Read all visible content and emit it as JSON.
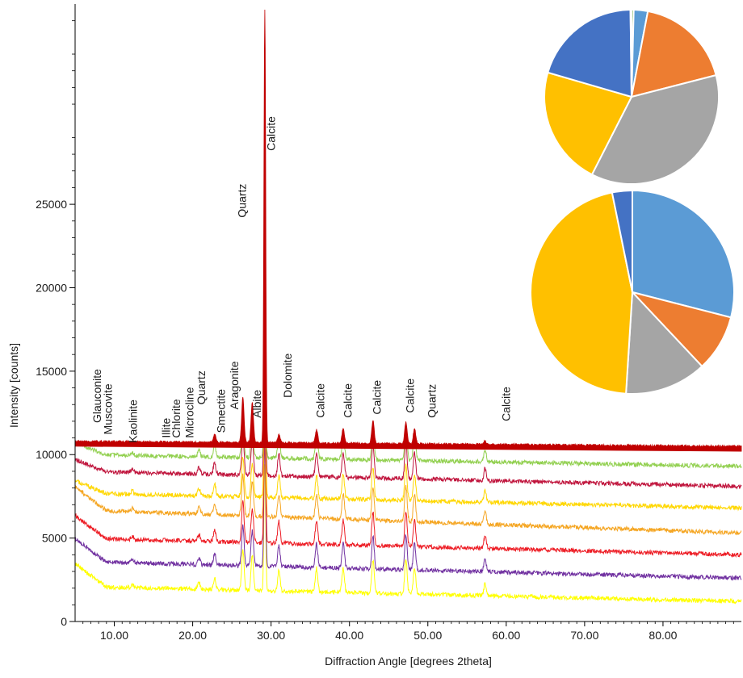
{
  "chart_data": [
    {
      "type": "line",
      "xlabel": "Diffraction Angle [degrees 2theta]",
      "ylabel": "Intensity [counts]",
      "xlim": [
        5,
        90
      ],
      "ylim": [
        0,
        37000
      ],
      "x_ticks": [
        "10.00",
        "20.00",
        "30.00",
        "40.00",
        "50.00",
        "60.00",
        "70.00",
        "80.00"
      ],
      "x_tick_values": [
        10,
        20,
        30,
        40,
        50,
        60,
        70,
        80
      ],
      "y_ticks": [
        "0",
        "5000",
        "10000",
        "15000",
        "20000",
        "25000"
      ],
      "y_tick_values": [
        0,
        5000,
        10000,
        15000,
        20000,
        25000
      ],
      "grid": false,
      "series": [
        {
          "color": "#c00000",
          "baseline": 10800,
          "end": 10500,
          "style": "filled",
          "peaks": [
            [
              22.8,
              500
            ],
            [
              26.4,
              2700
            ],
            [
              27.6,
              2400
            ],
            [
              29.2,
              26000
            ],
            [
              31.0,
              500
            ],
            [
              35.8,
              800
            ],
            [
              39.2,
              900
            ],
            [
              43.0,
              1400
            ],
            [
              47.2,
              1300
            ],
            [
              48.3,
              900
            ],
            [
              57.3,
              200
            ]
          ]
        },
        {
          "color": "#92d050",
          "baseline": 10000,
          "end": 9300,
          "peaks": [
            [
              12.3,
              200
            ],
            [
              20.8,
              400
            ],
            [
              22.8,
              700
            ],
            [
              26.4,
              2400
            ],
            [
              27.6,
              2100
            ],
            [
              29.2,
              7500
            ],
            [
              31.0,
              1300
            ],
            [
              35.8,
              1400
            ],
            [
              39.2,
              1500
            ],
            [
              43.0,
              2000
            ],
            [
              47.2,
              2100
            ],
            [
              48.3,
              1600
            ],
            [
              57.3,
              700
            ]
          ]
        },
        {
          "color": "#c0143c",
          "baseline": 9000,
          "end": 8100,
          "peaks": [
            [
              12.3,
              200
            ],
            [
              20.8,
              400
            ],
            [
              22.8,
              700
            ],
            [
              26.4,
              2400
            ],
            [
              27.6,
              2100
            ],
            [
              29.2,
              7500
            ],
            [
              31.0,
              1300
            ],
            [
              35.8,
              1400
            ],
            [
              39.2,
              1500
            ],
            [
              43.0,
              2000
            ],
            [
              47.2,
              2100
            ],
            [
              48.3,
              1600
            ],
            [
              57.3,
              700
            ]
          ]
        },
        {
          "color": "#ffd700",
          "baseline": 7700,
          "end": 6800,
          "peaks": [
            [
              12.3,
              200
            ],
            [
              20.8,
              400
            ],
            [
              22.8,
              700
            ],
            [
              26.4,
              2400
            ],
            [
              27.6,
              2100
            ],
            [
              29.2,
              7500
            ],
            [
              31.0,
              1300
            ],
            [
              35.8,
              1400
            ],
            [
              39.2,
              1500
            ],
            [
              43.0,
              2000
            ],
            [
              47.2,
              2100
            ],
            [
              48.3,
              1600
            ],
            [
              57.3,
              700
            ]
          ]
        },
        {
          "color": "#f5a623",
          "baseline": 6700,
          "end": 5300,
          "peaks": [
            [
              12.3,
              200
            ],
            [
              20.8,
              400
            ],
            [
              22.8,
              700
            ],
            [
              26.4,
              2400
            ],
            [
              27.6,
              2100
            ],
            [
              29.2,
              7500
            ],
            [
              31.0,
              1300
            ],
            [
              35.8,
              1400
            ],
            [
              39.2,
              1500
            ],
            [
              43.0,
              2000
            ],
            [
              47.2,
              2100
            ],
            [
              48.3,
              1600
            ],
            [
              57.3,
              700
            ]
          ]
        },
        {
          "color": "#ed1c24",
          "baseline": 5000,
          "end": 4000,
          "peaks": [
            [
              12.3,
              200
            ],
            [
              20.8,
              400
            ],
            [
              22.8,
              700
            ],
            [
              26.4,
              2400
            ],
            [
              27.6,
              2100
            ],
            [
              29.2,
              7500
            ],
            [
              31.0,
              1300
            ],
            [
              35.8,
              1400
            ],
            [
              39.2,
              1500
            ],
            [
              43.0,
              2000
            ],
            [
              47.2,
              2100
            ],
            [
              48.3,
              1600
            ],
            [
              57.3,
              700
            ]
          ]
        },
        {
          "color": "#7030a0",
          "baseline": 3600,
          "end": 2600,
          "peaks": [
            [
              12.3,
              200
            ],
            [
              20.8,
              400
            ],
            [
              22.8,
              700
            ],
            [
              26.4,
              2400
            ],
            [
              27.6,
              2100
            ],
            [
              29.2,
              7500
            ],
            [
              31.0,
              1300
            ],
            [
              35.8,
              1400
            ],
            [
              39.2,
              1500
            ],
            [
              43.0,
              2000
            ],
            [
              47.2,
              2100
            ],
            [
              48.3,
              1600
            ],
            [
              57.3,
              700
            ]
          ]
        },
        {
          "color": "#ffff00",
          "baseline": 2100,
          "end": 1200,
          "peaks": [
            [
              12.3,
              200
            ],
            [
              20.8,
              400
            ],
            [
              22.8,
              700
            ],
            [
              26.4,
              2400
            ],
            [
              27.6,
              2100
            ],
            [
              29.2,
              7500
            ],
            [
              31.0,
              1300
            ],
            [
              35.8,
              1400
            ],
            [
              39.2,
              1500
            ],
            [
              43.0,
              2000
            ],
            [
              47.2,
              2100
            ],
            [
              48.3,
              1600
            ],
            [
              57.3,
              700
            ]
          ]
        }
      ],
      "annotations": [
        {
          "text": "Glauconite",
          "x": 8.3,
          "y": 11900
        },
        {
          "text": "Muscovite",
          "x": 9.7,
          "y": 11200
        },
        {
          "text": "Kaolinite",
          "x": 12.9,
          "y": 10700
        },
        {
          "text": "Illite",
          "x": 17.1,
          "y": 11000
        },
        {
          "text": "Chlorite",
          "x": 18.4,
          "y": 11000
        },
        {
          "text": "Microcline",
          "x": 20.1,
          "y": 11000
        },
        {
          "text": "Quartz",
          "x": 21.6,
          "y": 13000
        },
        {
          "text": "Smectite",
          "x": 24.1,
          "y": 11300
        },
        {
          "text": "Aragonite",
          "x": 25.8,
          "y": 12700
        },
        {
          "text": "Quartz",
          "x": 26.8,
          "y": 24200
        },
        {
          "text": "Albite",
          "x": 28.7,
          "y": 12200
        },
        {
          "text": "Calcite",
          "x": 30.5,
          "y": 28200
        },
        {
          "text": "Dolomite",
          "x": 32.6,
          "y": 13400
        },
        {
          "text": "Calcite",
          "x": 36.8,
          "y": 12200
        },
        {
          "text": "Calcite",
          "x": 40.3,
          "y": 12200
        },
        {
          "text": "Calcite",
          "x": 44.0,
          "y": 12400
        },
        {
          "text": "Calcite",
          "x": 48.2,
          "y": 12500
        },
        {
          "text": "Quartz",
          "x": 51.0,
          "y": 12200
        },
        {
          "text": "Calcite",
          "x": 60.5,
          "y": 12000
        }
      ]
    },
    {
      "type": "pie",
      "position": "top-right",
      "slices": [
        {
          "value": 0.4,
          "color": "#70ad47"
        },
        {
          "value": 2.6,
          "color": "#5b9bd5"
        },
        {
          "value": 18.0,
          "color": "#ed7d31"
        },
        {
          "value": 36.5,
          "color": "#a5a5a5"
        },
        {
          "value": 22.0,
          "color": "#ffc000"
        },
        {
          "value": 20.3,
          "color": "#4472c4"
        },
        {
          "value": 0.2,
          "color": "#ffffff"
        }
      ]
    },
    {
      "type": "pie",
      "position": "middle-right",
      "slices": [
        {
          "value": 29.0,
          "color": "#5b9bd5"
        },
        {
          "value": 9.0,
          "color": "#ed7d31"
        },
        {
          "value": 13.0,
          "color": "#a5a5a5"
        },
        {
          "value": 45.8,
          "color": "#ffc000"
        },
        {
          "value": 3.2,
          "color": "#4472c4"
        }
      ]
    }
  ]
}
